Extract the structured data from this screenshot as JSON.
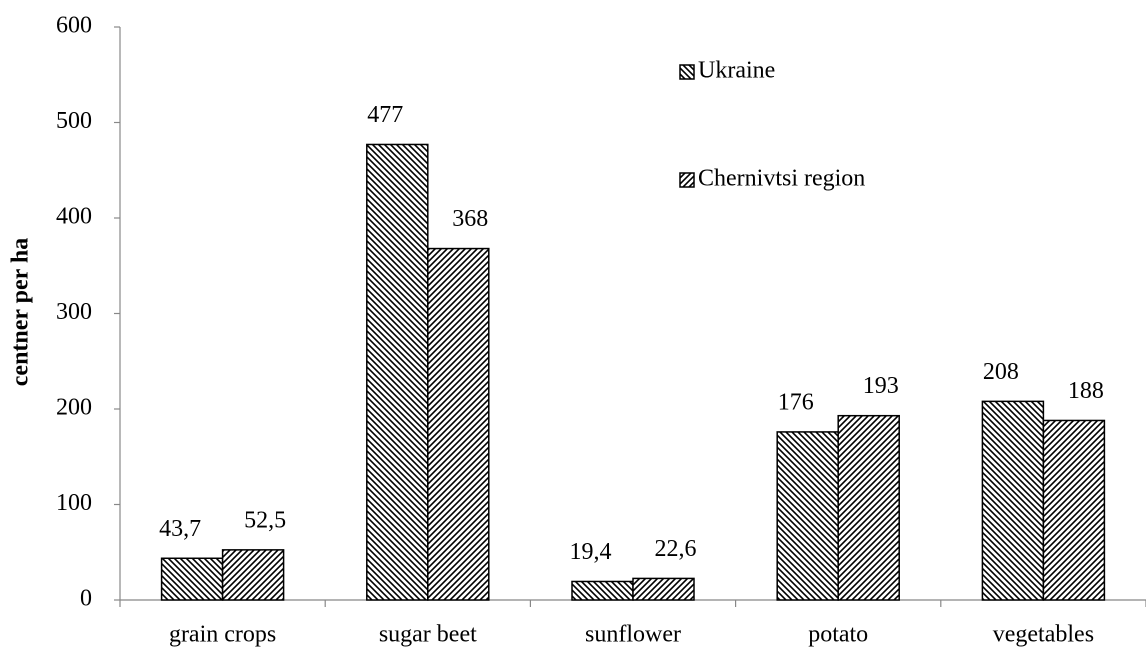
{
  "chart_data": {
    "type": "bar",
    "y_label": "centner per ha",
    "categories": [
      "grain crops",
      "sugar beet",
      "sunflower",
      "potato",
      "vegetables"
    ],
    "series": [
      {
        "name": "Ukraine",
        "color": "#000000",
        "pattern": "backslash",
        "values": [
          43.7,
          477,
          19.4,
          176,
          208
        ],
        "value_labels": [
          "43,7",
          "477",
          "19,4",
          "176",
          "208"
        ]
      },
      {
        "name": "Chernivtsi region",
        "color": "#000000",
        "pattern": "slash",
        "values": [
          52.5,
          368,
          22.6,
          193,
          188
        ],
        "value_labels": [
          "52,5",
          "368",
          "22,6",
          "193",
          "188"
        ]
      }
    ],
    "ylim": [
      0,
      600
    ],
    "yticks": [
      0,
      100,
      200,
      300,
      400,
      500,
      600
    ],
    "grid": false,
    "legend": "upper right"
  }
}
